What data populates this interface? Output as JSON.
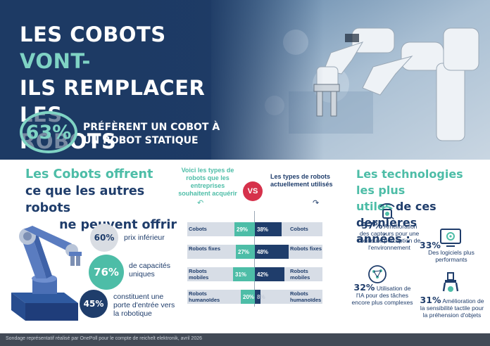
{
  "hero": {
    "title_line1_white": "LES COBOTS",
    "title_line1_accent": "VONT-",
    "title_line2": "ILS REMPLACER LES",
    "title_line3": "ROBOTS STATIQUES?",
    "stat_value": "63%",
    "stat_text": "PRÉFÈRENT UN COBOT À UN ROBOT STATIQUE"
  },
  "left": {
    "title_line1": "Les Cobots offrent",
    "title_line2": "ce que les autres robots",
    "title_line3": "ne peuvent offrir",
    "items": [
      {
        "value": "60%",
        "label": "prix inférieur"
      },
      {
        "value": "76%",
        "label": "de capacités uniques"
      },
      {
        "value": "45%",
        "label": "constituent une porte d'entrée vers la robotique"
      }
    ]
  },
  "middle": {
    "left_header": "Voici les types de robots que les entreprises souhaitent acquérir",
    "right_header": "Les types de robots actuellement utilisés",
    "vs": "VS",
    "arrow_left": "↶",
    "arrow_right": "↷"
  },
  "chart_data": {
    "type": "bar",
    "categories": [
      "Cobots",
      "Robots fixes",
      "Robots mobiles",
      "Robots humanoïdes"
    ],
    "series": [
      {
        "name": "Voici les types de robots que les entreprises souhaitent acquérir",
        "values": [
          29,
          27,
          31,
          20
        ]
      },
      {
        "name": "Les types de robots actuellement utilisés",
        "values": [
          38,
          48,
          42,
          8
        ]
      }
    ],
    "value_labels_left": [
      "29%",
      "27%",
      "31%",
      "20%"
    ],
    "value_labels_right": [
      "38%",
      "48%",
      "42%",
      "8%"
    ],
    "colors": {
      "left": "#4dbda7",
      "right": "#1f3d6b"
    },
    "orientation": "diverging-horizontal"
  },
  "right": {
    "title_a": "Les technologies les plus",
    "title_b": "utiles",
    "title_c": "de ces dernières",
    "title_d": "années :",
    "items": [
      {
        "value": "37%",
        "label": "Amélioration des capteurs pour une meilleure perception de l'environnement",
        "icon": "sensor-icon"
      },
      {
        "value": "33%",
        "label": "Des logiciels plus performants",
        "icon": "software-icon"
      },
      {
        "value": "32%",
        "label": "Utilisation de l'IA pour des tâches encore plus complexes",
        "icon": "ai-brain-icon"
      },
      {
        "value": "31%",
        "label": "Amélioration de la sensibilité tactile pour la préhension d'objets",
        "icon": "gripper-icon"
      }
    ]
  },
  "footer": {
    "text": "Sondage représentatif réalisé par OnePoll pour le compte de reichelt elektronik, avril 2026"
  },
  "colors": {
    "navy": "#1f3d6b",
    "teal": "#4dbda7",
    "red": "#d6314b",
    "grey": "#d7dde6"
  }
}
